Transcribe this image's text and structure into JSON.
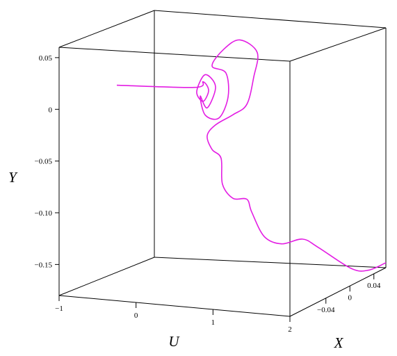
{
  "chart_data": {
    "type": "line3d",
    "xlabel": "U",
    "ylabel": "X",
    "zlabel": "Y",
    "ulim": [
      -1,
      2
    ],
    "uticks": [
      {
        "value": -1,
        "label": "−1"
      },
      0,
      1,
      2
    ],
    "xlim": [
      -0.1,
      0.06
    ],
    "xticks": [
      {
        "value": -0.04,
        "label": "−0.04"
      },
      0,
      0.04
    ],
    "ylim": [
      -0.18,
      0.06
    ],
    "yticks": [
      0.05,
      0,
      {
        "value": -0.05,
        "label": "−0.05"
      },
      {
        "value": -0.1,
        "label": "−0.10"
      },
      {
        "value": -0.15,
        "label": "−0.15"
      }
    ],
    "series": [
      {
        "color": "#e31de3",
        "u": [
          -0.869,
          0.141,
          0.25,
          0.322,
          0.25,
          0.168,
          0.277,
          0.412,
          0.304,
          0.214,
          0.277,
          0.457,
          0.575,
          0.547,
          0.367,
          0.52,
          0.728,
          0.953,
          0.908,
          0.818,
          0.638,
          0.412,
          0.304,
          0.367,
          0.484,
          0.502,
          0.638,
          0.818,
          0.881,
          1.044,
          1.269,
          1.54,
          1.62,
          1.8,
          1.9,
          2
        ],
        "x": [
          -0.02,
          -0.02,
          -0.02,
          -0.02,
          -0.02,
          -0.02,
          -0.02,
          -0.02,
          -0.02,
          -0.02,
          -0.02,
          -0.02,
          -0.02,
          -0.02,
          -0.02,
          -0.02,
          -0.02,
          -0.02,
          -0.02,
          -0.02,
          -0.02,
          -0.02,
          -0.02,
          -0.02,
          -0.02,
          -0.02,
          -0.02,
          -0.02,
          -0.02,
          -0.02,
          -0.02,
          -0.02,
          -0.004,
          0.028,
          0.044,
          0.06
        ],
        "y": [
          0.006,
          0.009,
          0.015,
          0.007,
          -0.004,
          0.005,
          0.022,
          0.011,
          -0.01,
          0.001,
          -0.017,
          -0.019,
          0.002,
          0.025,
          0.031,
          0.048,
          0.058,
          0.047,
          0.023,
          -0.004,
          -0.015,
          -0.026,
          -0.037,
          -0.05,
          -0.058,
          -0.083,
          -0.096,
          -0.096,
          -0.108,
          -0.131,
          -0.137,
          -0.131,
          -0.143,
          -0.172,
          -0.178,
          -0.175
        ]
      }
    ]
  }
}
